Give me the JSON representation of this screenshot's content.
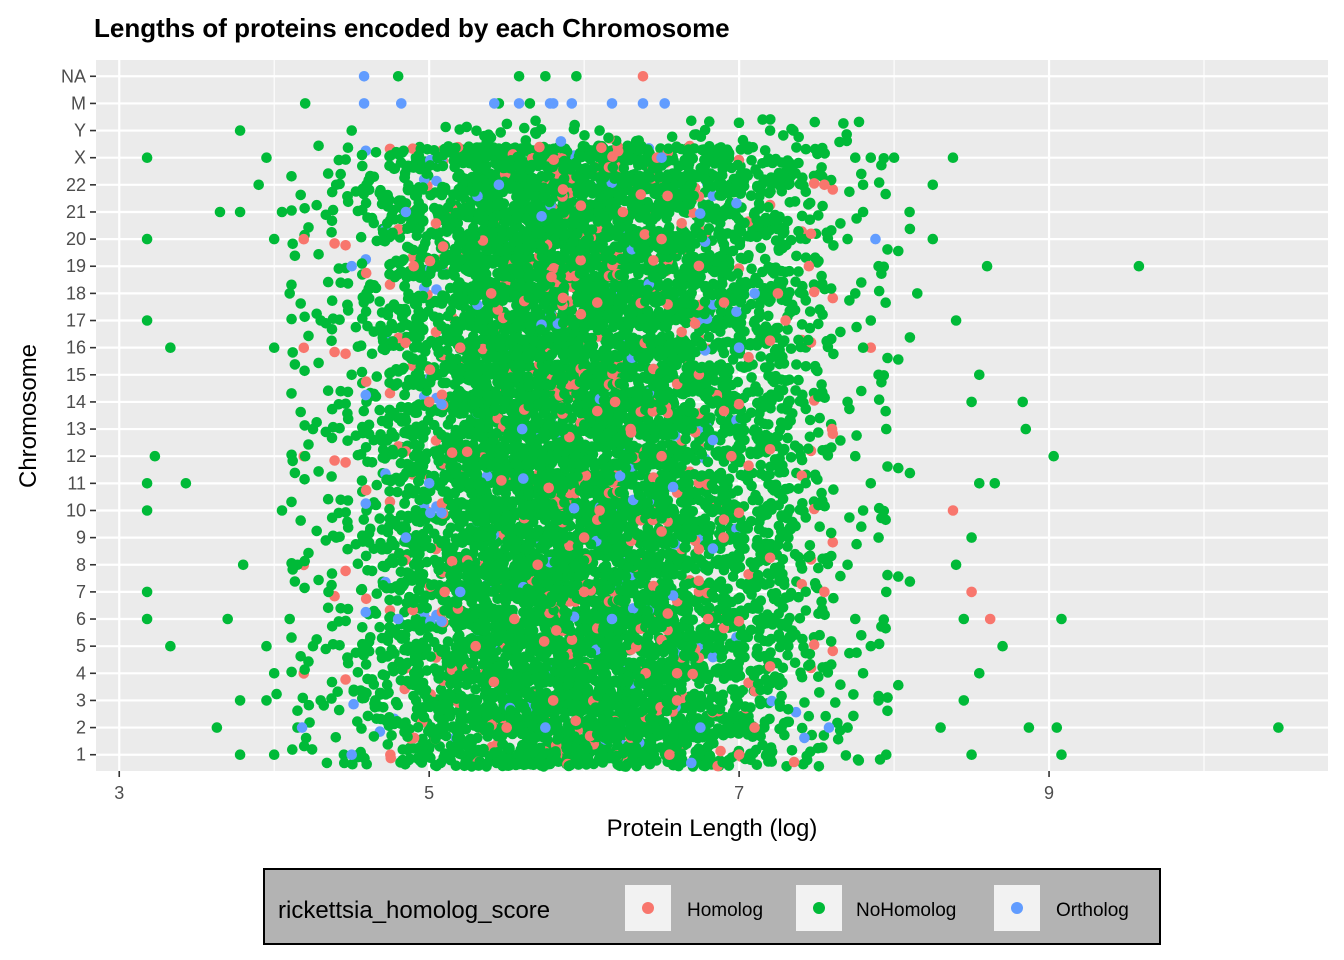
{
  "chart_data": {
    "type": "scatter",
    "title": "Lengths of proteins encoded by each Chromosome",
    "xlabel": "Protein Length (log)",
    "ylabel": "Chromosome",
    "xlim": [
      2.85,
      10.8
    ],
    "x_ticks": [
      3,
      5,
      7,
      9
    ],
    "x_minor_ticks": [
      4,
      6,
      8,
      10
    ],
    "categories": [
      "1",
      "2",
      "3",
      "4",
      "5",
      "6",
      "7",
      "8",
      "9",
      "10",
      "11",
      "12",
      "13",
      "14",
      "15",
      "16",
      "17",
      "18",
      "19",
      "20",
      "21",
      "22",
      "X",
      "Y",
      "M",
      "NA"
    ],
    "grid": true,
    "legend": {
      "title": "rickettsia_homolog_score",
      "placement": "bottom"
    },
    "series": [
      {
        "name": "Homolog",
        "color": "#F8766D",
        "points": [
          [
            6.38,
            "NA"
          ],
          [
            5.2,
            "16"
          ],
          [
            5.0,
            "14"
          ],
          [
            6.0,
            "9"
          ],
          [
            8.38,
            "10"
          ],
          [
            8.5,
            "7"
          ],
          [
            8.62,
            "6"
          ],
          [
            7.85,
            "16"
          ],
          [
            4.75,
            "1"
          ],
          [
            5.5,
            "2"
          ],
          [
            5.55,
            "6"
          ],
          [
            5.3,
            "5"
          ],
          [
            6.0,
            "7"
          ],
          [
            6.5,
            "12"
          ],
          [
            6.3,
            "13"
          ],
          [
            6.6,
            "3"
          ],
          [
            5.8,
            "3"
          ],
          [
            6.9,
            "9"
          ],
          [
            7.1,
            "2"
          ],
          [
            7.25,
            "18"
          ],
          [
            7.45,
            "19"
          ],
          [
            7.55,
            "22"
          ],
          [
            6.25,
            "21"
          ],
          [
            6.5,
            "20"
          ],
          [
            6.47,
            "X"
          ],
          [
            6.6,
            "4"
          ],
          [
            7.0,
            "1"
          ],
          [
            6.8,
            "6"
          ],
          [
            5.1,
            "7"
          ],
          [
            6.95,
            "12"
          ],
          [
            7.6,
            "13"
          ],
          [
            7.55,
            "7"
          ],
          [
            4.9,
            "19"
          ],
          [
            5.7,
            "8"
          ],
          [
            6.2,
            "14"
          ],
          [
            5.4,
            "18"
          ],
          [
            7.3,
            "17"
          ],
          [
            6.1,
            "10"
          ],
          [
            6.55,
            "1"
          ]
        ]
      },
      {
        "name": "NoHomolog",
        "color": "#00BA38",
        "points": [
          [
            3.18,
            "X"
          ],
          [
            3.18,
            "20"
          ],
          [
            3.18,
            "17"
          ],
          [
            3.33,
            "16"
          ],
          [
            3.23,
            "12"
          ],
          [
            3.43,
            "11"
          ],
          [
            3.18,
            "11"
          ],
          [
            3.18,
            "10"
          ],
          [
            3.18,
            "7"
          ],
          [
            3.18,
            "6"
          ],
          [
            3.33,
            "5"
          ],
          [
            3.63,
            "2"
          ],
          [
            3.78,
            "1"
          ],
          [
            3.78,
            "3"
          ],
          [
            3.7,
            "6"
          ],
          [
            3.8,
            "8"
          ],
          [
            3.78,
            "21"
          ],
          [
            3.65,
            "21"
          ],
          [
            3.78,
            "Y"
          ],
          [
            4.8,
            "NA"
          ],
          [
            4.2,
            "M"
          ],
          [
            9.58,
            "19"
          ],
          [
            10.48,
            "2"
          ],
          [
            9.08,
            "1"
          ],
          [
            9.05,
            "2"
          ],
          [
            9.08,
            "6"
          ],
          [
            9.03,
            "12"
          ],
          [
            8.85,
            "13"
          ],
          [
            8.83,
            "14"
          ],
          [
            8.87,
            "2"
          ],
          [
            8.38,
            "X"
          ],
          [
            8.25,
            "22"
          ],
          [
            8.25,
            "20"
          ],
          [
            8.6,
            "19"
          ],
          [
            8.7,
            "5"
          ],
          [
            5.58,
            "NA"
          ],
          [
            5.75,
            "NA"
          ],
          [
            5.95,
            "NA"
          ],
          [
            5.45,
            "M"
          ],
          [
            5.65,
            "M"
          ],
          [
            7.2,
            "Y"
          ],
          [
            7.35,
            "Y"
          ],
          [
            6.1,
            "Y"
          ],
          [
            7.85,
            "X"
          ],
          [
            8.0,
            "X"
          ],
          [
            8.1,
            "21"
          ],
          [
            8.15,
            "18"
          ],
          [
            8.4,
            "17"
          ],
          [
            8.55,
            "15"
          ],
          [
            8.5,
            "14"
          ],
          [
            8.55,
            "11"
          ],
          [
            8.65,
            "11"
          ],
          [
            8.5,
            "9"
          ],
          [
            8.4,
            "8"
          ],
          [
            8.45,
            "6"
          ],
          [
            8.55,
            "4"
          ],
          [
            8.45,
            "3"
          ],
          [
            8.3,
            "2"
          ],
          [
            8.5,
            "1"
          ],
          [
            4.0,
            "1"
          ],
          [
            4.15,
            "2"
          ],
          [
            3.95,
            "3"
          ],
          [
            4.0,
            "4"
          ],
          [
            3.95,
            "5"
          ],
          [
            4.1,
            "6"
          ],
          [
            4.15,
            "8"
          ],
          [
            4.05,
            "10"
          ],
          [
            4.2,
            "12"
          ],
          [
            4.0,
            "16"
          ],
          [
            4.1,
            "18"
          ],
          [
            4.0,
            "20"
          ],
          [
            3.95,
            "X"
          ],
          [
            4.05,
            "21"
          ],
          [
            4.4,
            "22"
          ],
          [
            4.5,
            "Y"
          ],
          [
            3.9,
            "22"
          ],
          [
            4.3,
            "17"
          ],
          [
            4.5,
            "15"
          ],
          [
            4.25,
            "13"
          ],
          [
            4.4,
            "9"
          ],
          [
            4.35,
            "7"
          ],
          [
            4.25,
            "5"
          ],
          [
            4.3,
            "3"
          ],
          [
            4.45,
            "1"
          ],
          [
            7.95,
            "1"
          ],
          [
            7.9,
            "3"
          ],
          [
            7.85,
            "5"
          ],
          [
            7.95,
            "7"
          ],
          [
            7.9,
            "9"
          ],
          [
            7.85,
            "11"
          ],
          [
            7.95,
            "13"
          ],
          [
            7.9,
            "15"
          ],
          [
            7.85,
            "17"
          ],
          [
            7.9,
            "19"
          ],
          [
            7.8,
            "21"
          ],
          [
            7.75,
            "X"
          ],
          [
            7.7,
            "2"
          ],
          [
            7.8,
            "4"
          ],
          [
            7.75,
            "6"
          ],
          [
            7.7,
            "8"
          ],
          [
            7.8,
            "10"
          ],
          [
            7.75,
            "12"
          ],
          [
            7.7,
            "14"
          ],
          [
            7.8,
            "16"
          ],
          [
            7.75,
            "18"
          ],
          [
            7.7,
            "20"
          ],
          [
            7.8,
            "22"
          ]
        ]
      },
      {
        "name": "Ortholog",
        "color": "#619CFF",
        "points": [
          [
            4.58,
            "NA"
          ],
          [
            4.82,
            "M"
          ],
          [
            4.58,
            "M"
          ],
          [
            5.42,
            "M"
          ],
          [
            5.58,
            "M"
          ],
          [
            5.78,
            "M"
          ],
          [
            5.92,
            "M"
          ],
          [
            6.18,
            "M"
          ],
          [
            6.38,
            "M"
          ],
          [
            6.52,
            "M"
          ],
          [
            5.8,
            "M"
          ],
          [
            7.88,
            "20"
          ],
          [
            7.58,
            "2"
          ],
          [
            6.18,
            "6"
          ],
          [
            4.18,
            "2"
          ],
          [
            4.5,
            "19"
          ],
          [
            4.85,
            "21"
          ],
          [
            6.5,
            "X"
          ],
          [
            5.45,
            "22"
          ],
          [
            4.5,
            "1"
          ],
          [
            4.85,
            "9"
          ],
          [
            5.2,
            "7"
          ],
          [
            4.8,
            "6"
          ],
          [
            5.0,
            "11"
          ],
          [
            6.75,
            "2"
          ],
          [
            7.1,
            "18"
          ],
          [
            7.0,
            "16"
          ],
          [
            5.6,
            "13"
          ],
          [
            5.75,
            "2"
          ]
        ]
      }
    ]
  }
}
